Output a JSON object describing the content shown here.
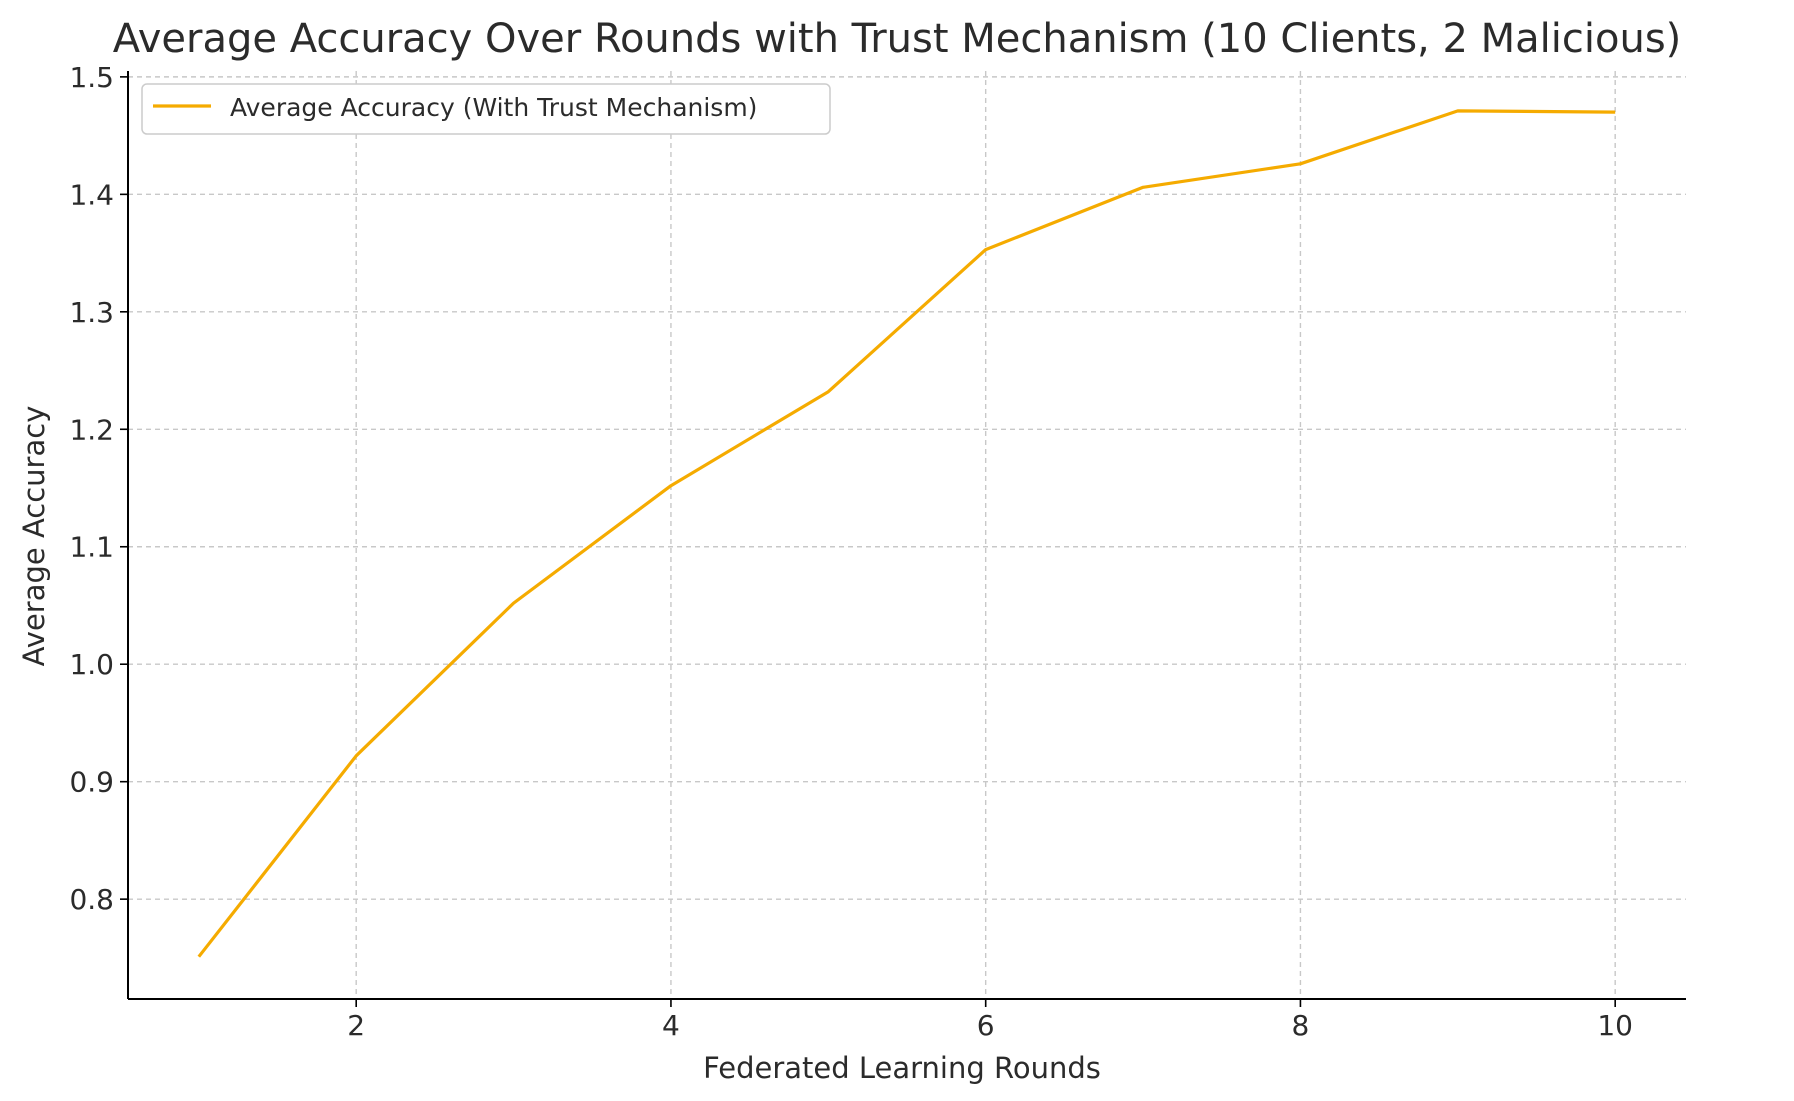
{
  "chart_data": {
    "type": "line",
    "title": "Average Accuracy Over Rounds with Trust Mechanism (10 Clients, 2 Malicious)",
    "xlabel": "Federated Learning Rounds",
    "ylabel": "Average Accuracy",
    "xlim": [
      0.55,
      10.45
    ],
    "ylim": [
      0.715,
      1.505
    ],
    "xticks": [
      2,
      4,
      6,
      8,
      10
    ],
    "yticks": [
      0.8,
      0.9,
      1.0,
      1.1,
      1.2,
      1.3,
      1.4,
      1.5
    ],
    "xtick_labels": [
      "2",
      "4",
      "6",
      "8",
      "10"
    ],
    "ytick_labels": [
      "0.8",
      "0.9",
      "1.0",
      "1.1",
      "1.2",
      "1.3",
      "1.4",
      "1.5"
    ],
    "grid": true,
    "legend_position": "upper-left",
    "series": [
      {
        "name": "Average Accuracy (With Trust Mechanism)",
        "color": "#f5ab00",
        "x": [
          1,
          2,
          3,
          4,
          5,
          6,
          7,
          8,
          9,
          10
        ],
        "y": [
          0.751,
          0.922,
          1.052,
          1.152,
          1.232,
          1.353,
          1.406,
          1.426,
          1.471,
          1.47
        ]
      }
    ]
  }
}
